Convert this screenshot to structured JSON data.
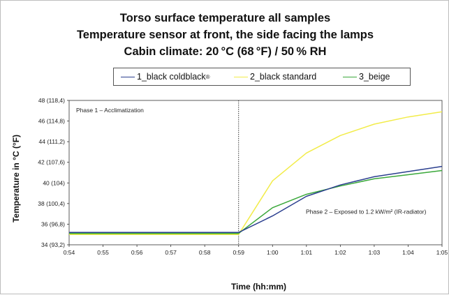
{
  "titles": [
    "Torso surface temperature all samples",
    "Temperature sensor at front, the side facing the lamps",
    "Cabin climate: 20 °C (68 °F) / 50 % RH"
  ],
  "colors": {
    "black_coldblack": "#2b3f8f",
    "black_standard": "#f2ec49",
    "beige": "#3aa83a"
  },
  "chart_data": {
    "type": "line",
    "title": "Torso surface temperature all samples",
    "subtitle": "Temperature sensor at front, the side facing the lamps; Cabin climate: 20 °C (68 °F) / 50 % RH",
    "xlabel": "Time (hh:mm)",
    "ylabel": "Temperature in °C (°F)",
    "x": [
      "0:54",
      "0:55",
      "0:56",
      "0:57",
      "0:58",
      "0:59",
      "1:00",
      "1:01",
      "1:02",
      "1:03",
      "1:04",
      "1:05"
    ],
    "ylim": [
      34,
      48
    ],
    "yticks": [
      34,
      36,
      38,
      40,
      42,
      44,
      46,
      48
    ],
    "ytick_labels": [
      "34 (93,2)",
      "36 (96,8)",
      "38 (100,4)",
      "40 (104)",
      "42 (107,6)",
      "44 (111,2)",
      "46 (114,8)",
      "48 (118,4)"
    ],
    "grid": false,
    "legend": "top",
    "series": [
      {
        "name": "1_black coldblack",
        "name_suffix": "®",
        "color": "#2b3f8f",
        "values": [
          35.2,
          35.2,
          35.2,
          35.2,
          35.2,
          35.2,
          36.8,
          38.7,
          39.8,
          40.6,
          41.1,
          41.6
        ]
      },
      {
        "name": "2_black standard",
        "color": "#f2ec49",
        "values": [
          35.0,
          35.0,
          35.0,
          35.0,
          35.0,
          35.0,
          40.2,
          42.9,
          44.6,
          45.7,
          46.4,
          46.9
        ]
      },
      {
        "name": "3_beige",
        "color": "#3aa83a",
        "values": [
          35.1,
          35.1,
          35.1,
          35.1,
          35.1,
          35.1,
          37.6,
          38.9,
          39.7,
          40.4,
          40.8,
          41.2
        ]
      }
    ],
    "annotations": [
      {
        "text": "Phase 1 – Acclimatization"
      },
      {
        "text": "Phase 2 – Exposed to 1.2 kW/m² (IR-radiator)"
      }
    ],
    "phase_divider_x": "0:59"
  }
}
